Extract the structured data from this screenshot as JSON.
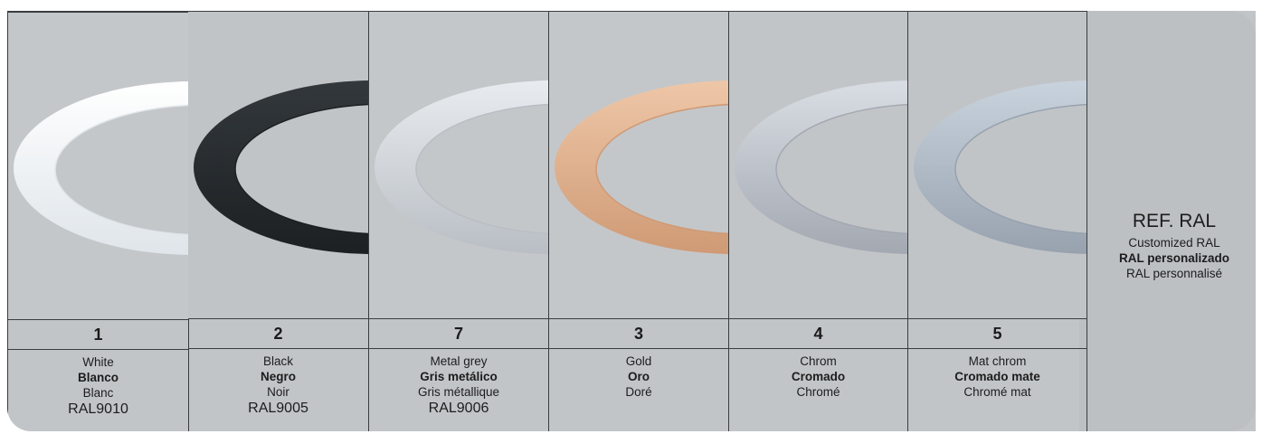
{
  "finishes": [
    {
      "number": "1",
      "en": "White",
      "es": "Blanco",
      "fr": "Blanc",
      "ral": "RAL9010",
      "colors": {
        "bg": "#c4c7ca",
        "ring_light": "#ffffff",
        "ring_dark": "#dfe5ea"
      }
    },
    {
      "number": "2",
      "en": "Black",
      "es": "Negro",
      "fr": "Noir",
      "ral": "RAL9005",
      "colors": {
        "bg": "#c1c4c7",
        "ring_light": "#33383c",
        "ring_dark": "#1c2023"
      }
    },
    {
      "number": "7",
      "en": "Metal grey",
      "es": "Gris metálico",
      "fr": "Gris métallique",
      "ral": "RAL9006",
      "colors": {
        "bg": "#c4c7ca",
        "ring_light": "#e8ecf0",
        "ring_dark": "#b9bec4"
      }
    },
    {
      "number": "3",
      "en": "Gold",
      "es": "Oro",
      "fr": "Doré",
      "ral": "",
      "colors": {
        "bg": "#c4c7ca",
        "ring_light": "#eec7a8",
        "ring_dark": "#cf9a75"
      }
    },
    {
      "number": "4",
      "en": "Chrom",
      "es": "Cromado",
      "fr": "Chromé",
      "ral": "",
      "colors": {
        "bg": "#c2c5c8",
        "ring_light": "#d9dee4",
        "ring_dark": "#a3a8b1"
      }
    },
    {
      "number": "5",
      "en": "Mat chrom",
      "es": "Cromado mate",
      "fr": "Chromé mat",
      "ral": "",
      "colors": {
        "bg": "#c1c4c7",
        "ring_light": "#c9d3de",
        "ring_dark": "#97a2ae"
      }
    }
  ],
  "ref_ral": {
    "title": "REF. RAL",
    "en": "Customized RAL",
    "es": "RAL personalizado",
    "fr": "RAL personnalisé"
  }
}
